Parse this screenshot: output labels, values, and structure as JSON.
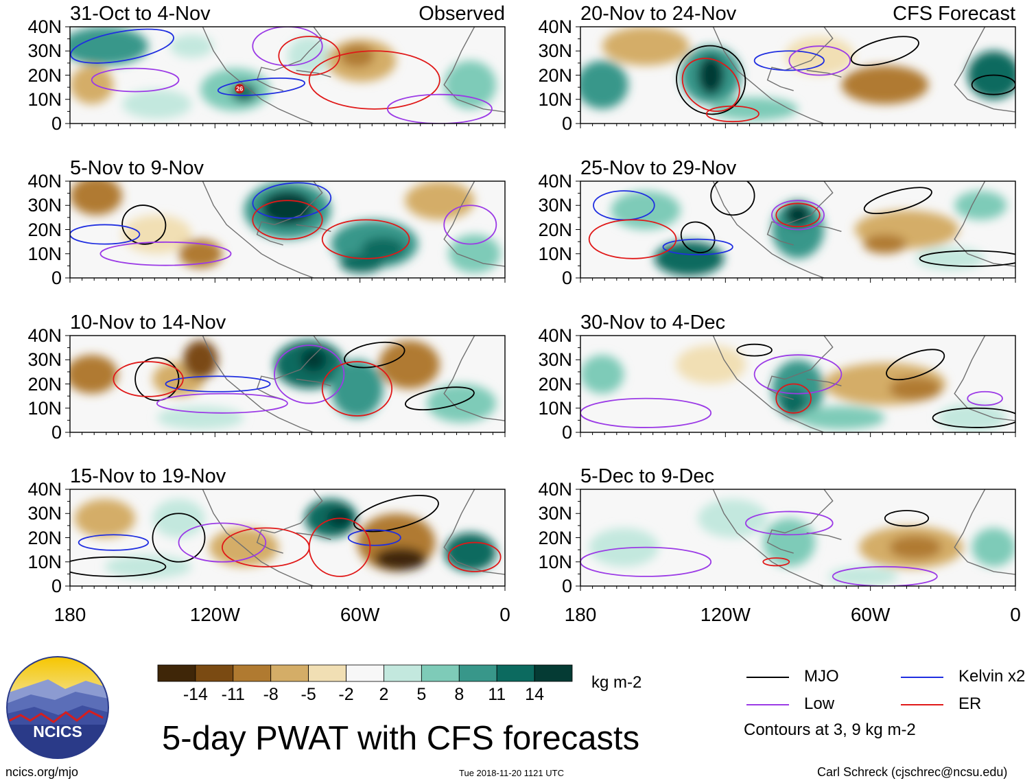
{
  "figure": {
    "title": "5-day PWAT with CFS forecasts",
    "observed_label": "Observed",
    "forecast_label": "CFS Forecast",
    "source_url": "ncics.org/mjo",
    "timestamp": "Tue 2018-11-20 1121 UTC",
    "author": "Carl Schreck (cjschrec@ncsu.edu)",
    "logo_text": "NCICS"
  },
  "axes": {
    "lat_labels": [
      "40N",
      "30N",
      "20N",
      "10N",
      "0"
    ],
    "lon_labels": [
      "180",
      "120W",
      "60W",
      "0"
    ]
  },
  "panels": [
    {
      "period": "31-Oct to 4-Nov",
      "column": "observed",
      "tc_marker": "26"
    },
    {
      "period": "5-Nov to 9-Nov",
      "column": "observed"
    },
    {
      "period": "10-Nov to 14-Nov",
      "column": "observed"
    },
    {
      "period": "15-Nov to 19-Nov",
      "column": "observed"
    },
    {
      "period": "20-Nov to 24-Nov",
      "column": "forecast"
    },
    {
      "period": "25-Nov to 29-Nov",
      "column": "forecast"
    },
    {
      "period": "30-Nov to 4-Dec",
      "column": "forecast"
    },
    {
      "period": "5-Dec to 9-Dec",
      "column": "forecast"
    }
  ],
  "colorbar": {
    "unit": "kg m-2",
    "tick_labels": [
      "-14",
      "-11",
      "-8",
      "-5",
      "-2",
      "2",
      "5",
      "8",
      "11",
      "14"
    ],
    "colors": [
      "#3f2608",
      "#7a4a12",
      "#b07a30",
      "#d4ad67",
      "#f1dfb4",
      "#f7f7f7",
      "#c3e8de",
      "#7ecbb8",
      "#38978a",
      "#0c6a5f",
      "#053b34"
    ]
  },
  "legend": {
    "items": [
      {
        "label": "MJO",
        "color": "#000000"
      },
      {
        "label": "Kelvin x2",
        "color": "#1f2ee0"
      },
      {
        "label": "Low",
        "color": "#9b3ae6"
      },
      {
        "label": "ER",
        "color": "#e01818"
      }
    ],
    "note": "Contours at 3, 9 kg m-2"
  }
}
